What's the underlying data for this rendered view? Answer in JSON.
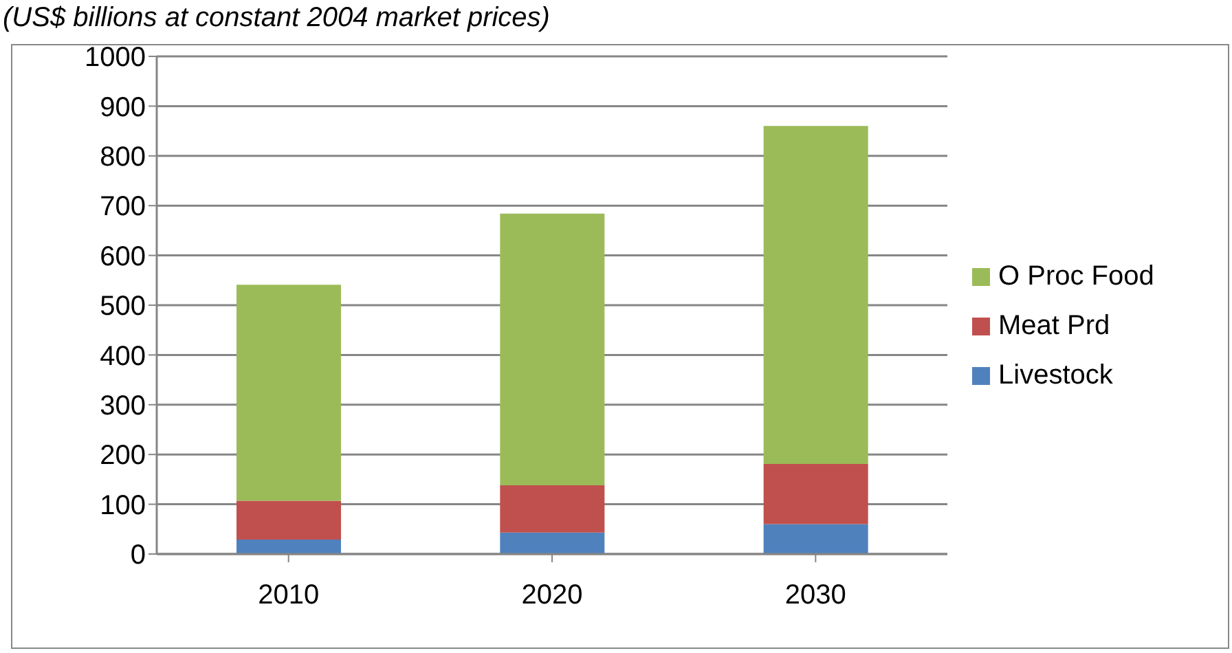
{
  "chart_data": {
    "type": "bar",
    "title": "(US$ billions at constant 2004 market prices)",
    "categories": [
      "2010",
      "2020",
      "2030"
    ],
    "stacked": true,
    "series": [
      {
        "name": "Livestock",
        "color": "#4f81bd",
        "values": [
          29,
          43,
          60
        ]
      },
      {
        "name": "Meat Prd",
        "color": "#c0504d",
        "values": [
          78,
          95,
          121
        ]
      },
      {
        "name": "O Proc Food",
        "color": "#9bbb59",
        "values": [
          434,
          546,
          679
        ]
      }
    ],
    "ylim": [
      0,
      1000
    ],
    "yticks": [
      0,
      100,
      200,
      300,
      400,
      500,
      600,
      700,
      800,
      900,
      1000
    ],
    "grid": "y",
    "legend": "right"
  }
}
